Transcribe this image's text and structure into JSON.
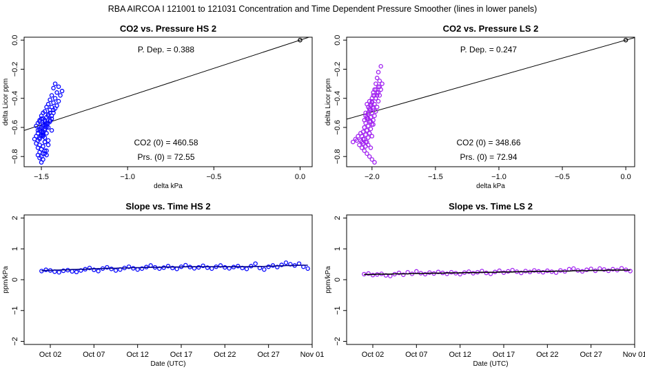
{
  "page": {
    "title": "RBA   AIRCOA I   121001 to 121031   Concentration and Time Dependent Pressure Smoother (lines in lower panels)"
  },
  "chart_data": [
    {
      "id": "hs-pressure",
      "type": "scatter",
      "title": "CO2 vs. Pressure HS 2",
      "xlabel": "delta kPa",
      "ylabel": "delta Licor ppm",
      "xlim": [
        -1.6,
        0.07
      ],
      "ylim": [
        -0.87,
        0.02
      ],
      "xticks": [
        -1.5,
        -1.0,
        -0.5,
        0.0
      ],
      "xtick_labels": [
        "−1.5",
        "−1.0",
        "−0.5",
        "0.0"
      ],
      "yticks": [
        -0.8,
        -0.6,
        -0.4,
        -0.2,
        0.0
      ],
      "ytick_labels": [
        "−0.8",
        "−0.6",
        "−0.4",
        "−0.2",
        "0.0"
      ],
      "point_color": "#0000ff",
      "fit_line": {
        "slope": 0.388,
        "intercept": 0.0
      },
      "origin_point": [
        0.0,
        0.0
      ],
      "annotations": {
        "p_dep": "P. Dep. =  0.388",
        "co2_0": "CO2 (0) =  460.58",
        "prs_0": "Prs. (0) =  72.55"
      },
      "x": [
        -1.42,
        -1.4,
        -1.38,
        -1.43,
        -1.41,
        -1.39,
        -1.44,
        -1.42,
        -1.4,
        -1.45,
        -1.43,
        -1.41,
        -1.46,
        -1.44,
        -1.42,
        -1.47,
        -1.45,
        -1.43,
        -1.48,
        -1.46,
        -1.44,
        -1.49,
        -1.47,
        -1.45,
        -1.5,
        -1.48,
        -1.46,
        -1.51,
        -1.49,
        -1.47,
        -1.52,
        -1.5,
        -1.48,
        -1.53,
        -1.51,
        -1.49,
        -1.47,
        -1.52,
        -1.5,
        -1.48,
        -1.53,
        -1.51,
        -1.49,
        -1.54,
        -1.52,
        -1.5,
        -1.48,
        -1.53,
        -1.51,
        -1.49,
        -1.52,
        -1.5,
        -1.48,
        -1.51,
        -1.49,
        -1.47,
        -1.52,
        -1.5,
        -1.48,
        -1.51,
        -1.49,
        -1.47,
        -1.5,
        -1.48,
        -1.46,
        -1.51,
        -1.49,
        -1.47,
        -1.52,
        -1.5,
        -1.48,
        -1.51,
        -1.49,
        -1.5,
        -1.48,
        -1.47,
        -1.49,
        -1.51,
        -1.5,
        -1.49,
        -1.48,
        -1.46,
        -1.45,
        -1.44,
        -1.46,
        -1.45,
        -1.43,
        -1.47,
        -1.46,
        -1.44
      ],
      "y": [
        -0.3,
        -0.32,
        -0.35,
        -0.33,
        -0.36,
        -0.38,
        -0.38,
        -0.4,
        -0.42,
        -0.41,
        -0.43,
        -0.45,
        -0.44,
        -0.46,
        -0.47,
        -0.46,
        -0.48,
        -0.5,
        -0.49,
        -0.51,
        -0.52,
        -0.5,
        -0.53,
        -0.55,
        -0.54,
        -0.56,
        -0.57,
        -0.55,
        -0.58,
        -0.59,
        -0.57,
        -0.6,
        -0.61,
        -0.59,
        -0.62,
        -0.63,
        -0.6,
        -0.64,
        -0.65,
        -0.62,
        -0.66,
        -0.67,
        -0.64,
        -0.68,
        -0.69,
        -0.66,
        -0.7,
        -0.71,
        -0.72,
        -0.73,
        -0.74,
        -0.75,
        -0.76,
        -0.77,
        -0.78,
        -0.76,
        -0.79,
        -0.8,
        -0.78,
        -0.81,
        -0.82,
        -0.79,
        -0.84,
        -0.7,
        -0.72,
        -0.68,
        -0.66,
        -0.64,
        -0.62,
        -0.6,
        -0.58,
        -0.56,
        -0.54,
        -0.52,
        -0.55,
        -0.57,
        -0.59,
        -0.61,
        -0.63,
        -0.65,
        -0.67,
        -0.69,
        -0.56,
        -0.54,
        -0.52,
        -0.5,
        -0.48,
        -0.58,
        -0.6,
        -0.62
      ]
    },
    {
      "id": "ls-pressure",
      "type": "scatter",
      "title": "CO2 vs. Pressure LS 2",
      "xlabel": "delta kPa",
      "ylabel": "delta Licor ppm",
      "xlim": [
        -2.2,
        0.07
      ],
      "ylim": [
        -0.87,
        0.02
      ],
      "xticks": [
        -2.0,
        -1.5,
        -1.0,
        -0.5,
        0.0
      ],
      "xtick_labels": [
        "−2.0",
        "−1.5",
        "−1.0",
        "−0.5",
        "0.0"
      ],
      "yticks": [
        -0.8,
        -0.6,
        -0.4,
        -0.2,
        0.0
      ],
      "ytick_labels": [
        "−0.8",
        "−0.6",
        "−0.4",
        "−0.2",
        "0.0"
      ],
      "point_color": "#a020f0",
      "fit_line": {
        "slope": 0.247,
        "intercept": 0.0
      },
      "origin_point": [
        0.0,
        0.0
      ],
      "annotations": {
        "p_dep": "P. Dep. =  0.247",
        "co2_0": "CO2 (0) =  348.66",
        "prs_0": "Prs. (0) =  72.94"
      },
      "x": [
        -1.93,
        -1.95,
        -1.96,
        -1.94,
        -1.92,
        -1.97,
        -1.95,
        -1.93,
        -1.98,
        -1.96,
        -1.94,
        -1.99,
        -1.97,
        -1.95,
        -2.0,
        -1.98,
        -1.96,
        -2.01,
        -1.99,
        -1.97,
        -2.02,
        -2.0,
        -1.98,
        -2.03,
        -2.01,
        -1.99,
        -2.04,
        -2.02,
        -2.0,
        -2.05,
        -2.03,
        -2.01,
        -2.06,
        -2.04,
        -2.02,
        -2.07,
        -2.05,
        -2.03,
        -2.08,
        -2.06,
        -2.04,
        -2.09,
        -2.07,
        -2.05,
        -2.1,
        -2.08,
        -2.06,
        -2.04,
        -2.02,
        -2.0,
        -1.98,
        -2.03,
        -2.01,
        -1.99,
        -2.04,
        -2.02,
        -2.0,
        -1.98,
        -2.05,
        -2.03,
        -2.01,
        -1.99,
        -2.06,
        -2.04,
        -2.02,
        -2.0,
        -2.07,
        -2.05,
        -2.03,
        -2.01,
        -1.99,
        -1.97,
        -2.08,
        -2.12,
        -2.15,
        -2.13,
        -2.11,
        -2.09,
        -2.05,
        -2.03,
        -2.01,
        -1.97,
        -1.96,
        -1.95,
        -1.94,
        -2.02,
        -2.0,
        -2.06,
        -2.04
      ],
      "y": [
        -0.18,
        -0.22,
        -0.26,
        -0.28,
        -0.3,
        -0.3,
        -0.32,
        -0.34,
        -0.34,
        -0.36,
        -0.38,
        -0.38,
        -0.4,
        -0.42,
        -0.42,
        -0.44,
        -0.46,
        -0.45,
        -0.47,
        -0.49,
        -0.48,
        -0.5,
        -0.52,
        -0.51,
        -0.53,
        -0.55,
        -0.54,
        -0.56,
        -0.58,
        -0.57,
        -0.59,
        -0.61,
        -0.6,
        -0.62,
        -0.64,
        -0.63,
        -0.65,
        -0.67,
        -0.66,
        -0.68,
        -0.7,
        -0.69,
        -0.71,
        -0.73,
        -0.72,
        -0.74,
        -0.76,
        -0.78,
        -0.8,
        -0.82,
        -0.84,
        -0.5,
        -0.48,
        -0.46,
        -0.44,
        -0.42,
        -0.4,
        -0.38,
        -0.52,
        -0.54,
        -0.56,
        -0.58,
        -0.6,
        -0.62,
        -0.64,
        -0.66,
        -0.68,
        -0.7,
        -0.72,
        -0.74,
        -0.36,
        -0.34,
        -0.7,
        -0.69,
        -0.7,
        -0.68,
        -0.66,
        -0.64,
        -0.5,
        -0.46,
        -0.44,
        -0.4,
        -0.38,
        -0.36,
        -0.32,
        -0.47,
        -0.43,
        -0.55,
        -0.53
      ]
    },
    {
      "id": "hs-time",
      "type": "scatter",
      "title": "Slope vs. Time HS 2",
      "xlabel": "Date (UTC)",
      "ylabel": "ppm/kPa",
      "xlim": [
        "2012-09-29",
        "2012-11-01"
      ],
      "ylim": [
        -2.1,
        2.1
      ],
      "xtick_dates": [
        "2012-10-02",
        "2012-10-07",
        "2012-10-12",
        "2012-10-17",
        "2012-10-22",
        "2012-10-27",
        "2012-11-01"
      ],
      "xtick_labels": [
        "Oct 02",
        "Oct 07",
        "Oct 12",
        "Oct 17",
        "Oct 22",
        "Oct 27",
        "Nov 01"
      ],
      "yticks": [
        -2,
        -1,
        0,
        1,
        2
      ],
      "ytick_labels": [
        "−2",
        "−1",
        "0",
        "1",
        "2"
      ],
      "point_color": "#0000ff",
      "smoother_color": "#00008b",
      "x": [
        "2012-10-01",
        "2012-10-01 12:00",
        "2012-10-02",
        "2012-10-02 12:00",
        "2012-10-03",
        "2012-10-03 12:00",
        "2012-10-04",
        "2012-10-04 12:00",
        "2012-10-05",
        "2012-10-05 12:00",
        "2012-10-06",
        "2012-10-06 12:00",
        "2012-10-07",
        "2012-10-07 12:00",
        "2012-10-08",
        "2012-10-08 12:00",
        "2012-10-09",
        "2012-10-09 12:00",
        "2012-10-10",
        "2012-10-10 12:00",
        "2012-10-11",
        "2012-10-11 12:00",
        "2012-10-12",
        "2012-10-12 12:00",
        "2012-10-13",
        "2012-10-13 12:00",
        "2012-10-14",
        "2012-10-14 12:00",
        "2012-10-15",
        "2012-10-15 12:00",
        "2012-10-16",
        "2012-10-16 12:00",
        "2012-10-17",
        "2012-10-17 12:00",
        "2012-10-18",
        "2012-10-18 12:00",
        "2012-10-19",
        "2012-10-19 12:00",
        "2012-10-20",
        "2012-10-20 12:00",
        "2012-10-21",
        "2012-10-21 12:00",
        "2012-10-22",
        "2012-10-22 12:00",
        "2012-10-23",
        "2012-10-23 12:00",
        "2012-10-24",
        "2012-10-24 12:00",
        "2012-10-25",
        "2012-10-25 12:00",
        "2012-10-26",
        "2012-10-26 12:00",
        "2012-10-27",
        "2012-10-27 12:00",
        "2012-10-28",
        "2012-10-28 12:00",
        "2012-10-29",
        "2012-10-29 12:00",
        "2012-10-30",
        "2012-10-30 12:00",
        "2012-10-31",
        "2012-10-31 12:00"
      ],
      "y": [
        0.28,
        0.32,
        0.3,
        0.26,
        0.24,
        0.29,
        0.31,
        0.27,
        0.25,
        0.3,
        0.34,
        0.38,
        0.32,
        0.28,
        0.36,
        0.4,
        0.35,
        0.3,
        0.33,
        0.38,
        0.42,
        0.37,
        0.33,
        0.36,
        0.41,
        0.46,
        0.4,
        0.36,
        0.39,
        0.44,
        0.38,
        0.35,
        0.42,
        0.47,
        0.41,
        0.37,
        0.4,
        0.45,
        0.39,
        0.36,
        0.42,
        0.46,
        0.4,
        0.37,
        0.41,
        0.44,
        0.38,
        0.35,
        0.44,
        0.52,
        0.38,
        0.33,
        0.42,
        0.46,
        0.41,
        0.48,
        0.55,
        0.5,
        0.46,
        0.52,
        0.42,
        0.36
      ],
      "smooth_y": [
        0.29,
        0.3,
        0.3,
        0.31,
        0.31,
        0.32,
        0.32,
        0.33,
        0.33,
        0.34,
        0.34,
        0.35,
        0.35,
        0.36,
        0.36,
        0.37,
        0.37,
        0.37,
        0.38,
        0.38,
        0.38,
        0.39,
        0.39,
        0.39,
        0.4,
        0.4,
        0.4,
        0.4,
        0.41,
        0.41,
        0.41,
        0.41,
        0.41,
        0.42,
        0.42,
        0.42,
        0.42,
        0.42,
        0.42,
        0.42,
        0.42,
        0.42,
        0.42,
        0.42,
        0.42,
        0.42,
        0.42,
        0.42,
        0.43,
        0.43,
        0.43,
        0.43,
        0.44,
        0.44,
        0.45,
        0.45,
        0.46,
        0.46,
        0.46,
        0.47,
        0.47,
        0.47
      ]
    },
    {
      "id": "ls-time",
      "type": "scatter",
      "title": "Slope vs. Time LS 2",
      "xlabel": "Date (UTC)",
      "ylabel": "ppm/kPa",
      "xlim": [
        "2012-09-29",
        "2012-11-01"
      ],
      "ylim": [
        -2.1,
        2.1
      ],
      "xtick_dates": [
        "2012-10-02",
        "2012-10-07",
        "2012-10-12",
        "2012-10-17",
        "2012-10-22",
        "2012-10-27",
        "2012-11-01"
      ],
      "xtick_labels": [
        "Oct 02",
        "Oct 07",
        "Oct 12",
        "Oct 17",
        "Oct 22",
        "Oct 27",
        "Nov 01"
      ],
      "yticks": [
        -2,
        -1,
        0,
        1,
        2
      ],
      "ytick_labels": [
        "−2",
        "−1",
        "0",
        "1",
        "2"
      ],
      "point_color": "#a020f0",
      "smoother_color": "#000000",
      "x": [
        "2012-10-01",
        "2012-10-01 12:00",
        "2012-10-02",
        "2012-10-02 12:00",
        "2012-10-03",
        "2012-10-03 12:00",
        "2012-10-04",
        "2012-10-04 12:00",
        "2012-10-05",
        "2012-10-05 12:00",
        "2012-10-06",
        "2012-10-06 12:00",
        "2012-10-07",
        "2012-10-07 12:00",
        "2012-10-08",
        "2012-10-08 12:00",
        "2012-10-09",
        "2012-10-09 12:00",
        "2012-10-10",
        "2012-10-10 12:00",
        "2012-10-11",
        "2012-10-11 12:00",
        "2012-10-12",
        "2012-10-12 12:00",
        "2012-10-13",
        "2012-10-13 12:00",
        "2012-10-14",
        "2012-10-14 12:00",
        "2012-10-15",
        "2012-10-15 12:00",
        "2012-10-16",
        "2012-10-16 12:00",
        "2012-10-17",
        "2012-10-17 12:00",
        "2012-10-18",
        "2012-10-18 12:00",
        "2012-10-19",
        "2012-10-19 12:00",
        "2012-10-20",
        "2012-10-20 12:00",
        "2012-10-21",
        "2012-10-21 12:00",
        "2012-10-22",
        "2012-10-22 12:00",
        "2012-10-23",
        "2012-10-23 12:00",
        "2012-10-24",
        "2012-10-24 12:00",
        "2012-10-25",
        "2012-10-25 12:00",
        "2012-10-26",
        "2012-10-26 12:00",
        "2012-10-27",
        "2012-10-27 12:00",
        "2012-10-28",
        "2012-10-28 12:00",
        "2012-10-29",
        "2012-10-29 12:00",
        "2012-10-30",
        "2012-10-30 12:00",
        "2012-10-31",
        "2012-10-31 12:00"
      ],
      "y": [
        0.18,
        0.2,
        0.15,
        0.17,
        0.19,
        0.14,
        0.12,
        0.18,
        0.22,
        0.16,
        0.24,
        0.19,
        0.27,
        0.21,
        0.18,
        0.23,
        0.2,
        0.25,
        0.22,
        0.19,
        0.24,
        0.21,
        0.18,
        0.23,
        0.26,
        0.21,
        0.24,
        0.28,
        0.22,
        0.19,
        0.25,
        0.29,
        0.23,
        0.27,
        0.31,
        0.26,
        0.22,
        0.28,
        0.25,
        0.3,
        0.27,
        0.24,
        0.29,
        0.26,
        0.23,
        0.3,
        0.27,
        0.34,
        0.36,
        0.3,
        0.27,
        0.32,
        0.35,
        0.29,
        0.36,
        0.33,
        0.29,
        0.34,
        0.31,
        0.37,
        0.32,
        0.28
      ],
      "smooth_y": [
        0.17,
        0.17,
        0.17,
        0.18,
        0.18,
        0.18,
        0.18,
        0.19,
        0.19,
        0.19,
        0.19,
        0.2,
        0.2,
        0.2,
        0.2,
        0.21,
        0.21,
        0.21,
        0.21,
        0.22,
        0.22,
        0.22,
        0.22,
        0.23,
        0.23,
        0.23,
        0.23,
        0.24,
        0.24,
        0.24,
        0.24,
        0.25,
        0.25,
        0.25,
        0.25,
        0.26,
        0.26,
        0.26,
        0.26,
        0.27,
        0.27,
        0.27,
        0.27,
        0.27,
        0.28,
        0.28,
        0.28,
        0.28,
        0.29,
        0.29,
        0.29,
        0.29,
        0.3,
        0.3,
        0.3,
        0.3,
        0.31,
        0.31,
        0.31,
        0.31,
        0.31,
        0.31
      ]
    }
  ]
}
